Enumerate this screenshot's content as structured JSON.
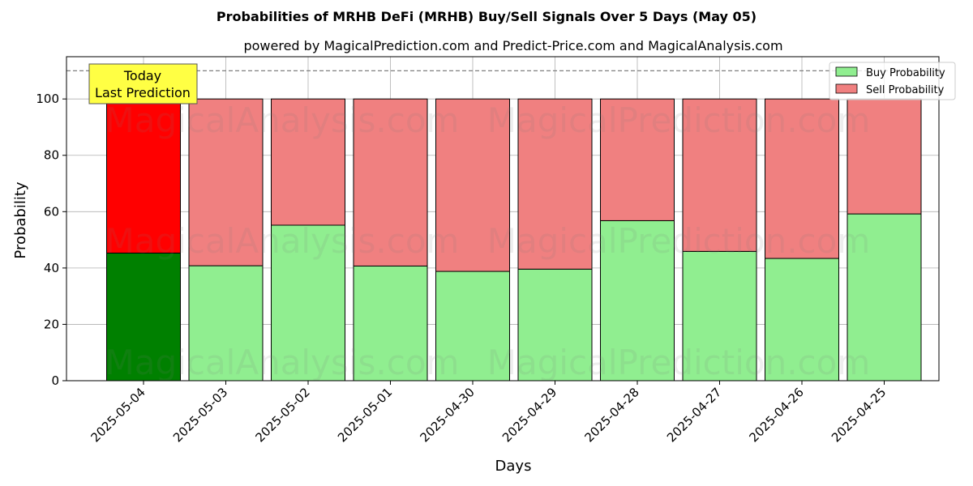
{
  "chart_data": {
    "type": "bar",
    "stacked": true,
    "title": "Probabilities of MRHB DeFi (MRHB) Buy/Sell Signals Over 5 Days (May 05)",
    "subtitle": "powered by MagicalPrediction.com and Predict-Price.com and MagicalAnalysis.com",
    "xlabel": "Days",
    "ylabel": "Probability",
    "ylim": [
      0,
      115
    ],
    "yticks": [
      0,
      20,
      40,
      60,
      80,
      100
    ],
    "reference_line": 110,
    "grid": true,
    "legend_position": "top-right",
    "categories": [
      "2025-05-04",
      "2025-05-03",
      "2025-05-02",
      "2025-05-01",
      "2025-04-30",
      "2025-04-29",
      "2025-04-28",
      "2025-04-27",
      "2025-04-26",
      "2025-04-25"
    ],
    "series": [
      {
        "name": "Buy Probability",
        "values": [
          45.3,
          40.8,
          55.2,
          40.7,
          38.8,
          39.6,
          56.8,
          45.9,
          43.4,
          59.2
        ],
        "color": "#90ee90",
        "highlight_color": "#008000"
      },
      {
        "name": "Sell Probability",
        "values": [
          54.7,
          59.2,
          44.8,
          59.3,
          61.2,
          60.4,
          43.2,
          54.1,
          56.6,
          40.8
        ],
        "color": "#f08080",
        "highlight_color": "#ff0000"
      }
    ],
    "annotation": {
      "lines": [
        "Today",
        "Last Prediction"
      ],
      "background": "#ffff44"
    },
    "watermarks": [
      "MagicalAnalysis.com",
      "MagicalPrediction.com"
    ]
  }
}
